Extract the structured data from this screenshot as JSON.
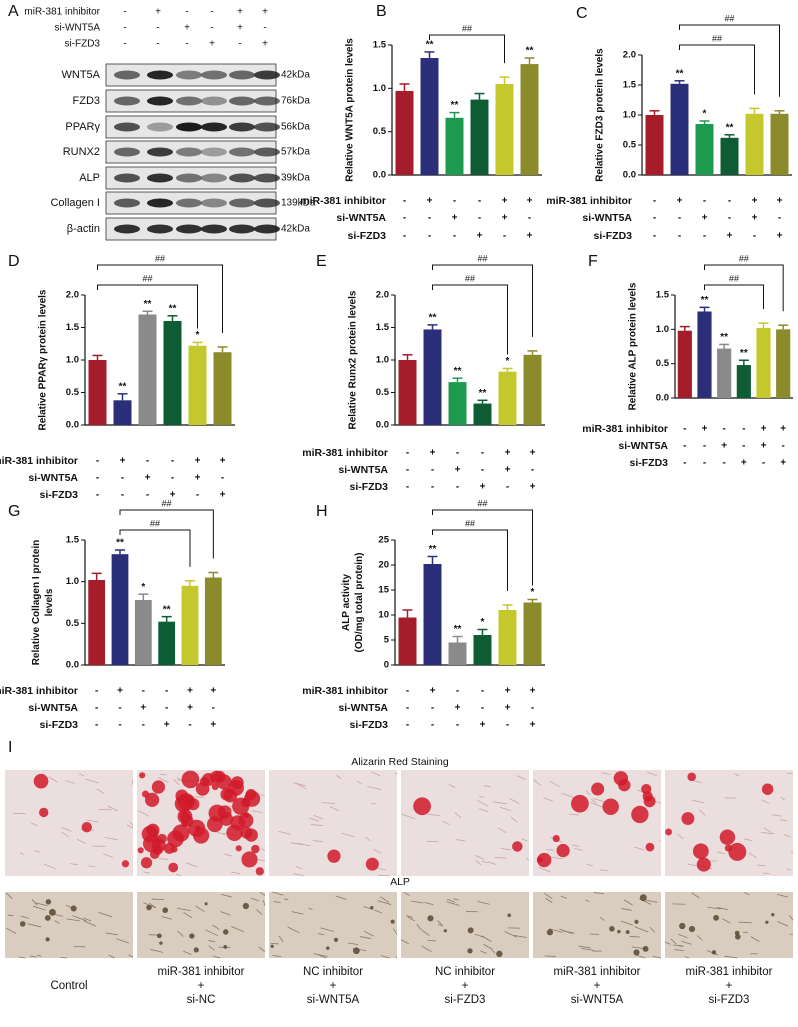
{
  "treatments": {
    "rows": [
      {
        "name": "miR-381 inhibitor",
        "signs": [
          "-",
          "+",
          "-",
          "-",
          "+",
          "+"
        ]
      },
      {
        "name": "si-WNT5A",
        "signs": [
          "-",
          "-",
          "+",
          "-",
          "+",
          "-"
        ]
      },
      {
        "name": "si-FZD3",
        "signs": [
          "-",
          "-",
          "-",
          "+",
          "-",
          "+"
        ]
      }
    ]
  },
  "blot": {
    "panel": "A",
    "proteins": [
      {
        "name": "WNT5A",
        "size": "42kDa"
      },
      {
        "name": "FZD3",
        "size": "76kDa"
      },
      {
        "name": "PPARγ",
        "size": "56kDa"
      },
      {
        "name": "RUNX2",
        "size": "57kDa"
      },
      {
        "name": "ALP",
        "size": "39kDa"
      },
      {
        "name": "Collagen I",
        "size": "139kDa"
      },
      {
        "name": "β-actin",
        "size": "42kDa"
      }
    ]
  },
  "chart_data": [
    {
      "type": "bar",
      "panel": "B",
      "ylabel": [
        "Relative WNT5A protein levels"
      ],
      "values": [
        0.97,
        1.35,
        0.66,
        0.87,
        1.05,
        1.28
      ],
      "errors": [
        0.08,
        0.07,
        0.06,
        0.07,
        0.08,
        0.07
      ],
      "colors": [
        "#a51c2a",
        "#2b2f7a",
        "#1e9a50",
        "#0d5c34",
        "#c5c82c",
        "#8c8b2c"
      ],
      "significance": [
        null,
        "**",
        "**",
        null,
        null,
        "**"
      ],
      "annotations": [
        {
          "text": "##",
          "from": 1,
          "to": 4
        }
      ],
      "ylim": [
        0,
        1.5
      ],
      "yticks": [
        {
          "value": 0,
          "label": "0.0"
        },
        0.5,
        {
          "value": 1,
          "label": "1.0"
        },
        1.5
      ]
    },
    {
      "type": "bar",
      "panel": "C",
      "ylabel": [
        "Relative FZD3 protein levels"
      ],
      "values": [
        1.0,
        1.52,
        0.85,
        0.62,
        1.02,
        1.02
      ],
      "errors": [
        0.07,
        0.05,
        0.05,
        0.05,
        0.09,
        0.05
      ],
      "colors": [
        "#a51c2a",
        "#2b2f7a",
        "#1e9a50",
        "#0d5c34",
        "#c5c82c",
        "#8c8b2c"
      ],
      "significance": [
        null,
        "**",
        "*",
        "**",
        null,
        null
      ],
      "annotations": [
        {
          "text": "##",
          "from": 1,
          "to": 5
        },
        {
          "text": "##",
          "from": 1,
          "to": 4
        }
      ],
      "ylim": [
        0,
        2
      ],
      "yticks": [
        {
          "value": 0,
          "label": "0.0"
        },
        0.5,
        {
          "value": 1,
          "label": "1.0"
        },
        1.5,
        {
          "value": 2,
          "label": "2.0"
        }
      ]
    },
    {
      "type": "bar",
      "panel": "D",
      "ylabel": [
        "Relative PPARγ protein levels"
      ],
      "values": [
        1.0,
        0.38,
        1.7,
        1.6,
        1.22,
        1.12
      ],
      "errors": [
        0.07,
        0.1,
        0.05,
        0.08,
        0.05,
        0.08
      ],
      "colors": [
        "#a51c2a",
        "#2b2f7a",
        "#8a8a8a",
        "#0d5c34",
        "#c5c82c",
        "#8c8b2c"
      ],
      "significance": [
        null,
        "**",
        "**",
        "**",
        "*",
        null
      ],
      "annotations": [
        {
          "text": "##",
          "from": 0,
          "to": 5
        },
        {
          "text": "##",
          "from": 0,
          "to": 4
        }
      ],
      "ylim": [
        0,
        2
      ],
      "yticks": [
        {
          "value": 0,
          "label": "0.0"
        },
        0.5,
        {
          "value": 1,
          "label": "1.0"
        },
        1.5,
        {
          "value": 2,
          "label": "2.0"
        }
      ]
    },
    {
      "type": "bar",
      "panel": "E",
      "ylabel": [
        "Relative Runx2 protein levels"
      ],
      "values": [
        1.0,
        1.47,
        0.66,
        0.33,
        0.82,
        1.08
      ],
      "errors": [
        0.08,
        0.07,
        0.06,
        0.05,
        0.05,
        0.06
      ],
      "colors": [
        "#a51c2a",
        "#2b2f7a",
        "#1e9a50",
        "#0d5c34",
        "#c5c82c",
        "#8c8b2c"
      ],
      "significance": [
        null,
        "**",
        "**",
        "**",
        "*",
        null
      ],
      "annotations": [
        {
          "text": "##",
          "from": 1,
          "to": 5
        },
        {
          "text": "##",
          "from": 1,
          "to": 4
        }
      ],
      "ylim": [
        0,
        2
      ],
      "yticks": [
        {
          "value": 0,
          "label": "0.0"
        },
        0.5,
        {
          "value": 1,
          "label": "1.0"
        },
        1.5,
        {
          "value": 2,
          "label": "2.0"
        }
      ]
    },
    {
      "type": "bar",
      "panel": "F",
      "ylabel": [
        "Relative ALP protein levels"
      ],
      "values": [
        0.98,
        1.26,
        0.72,
        0.48,
        1.02,
        1.0
      ],
      "errors": [
        0.06,
        0.06,
        0.06,
        0.07,
        0.07,
        0.06
      ],
      "colors": [
        "#a51c2a",
        "#2b2f7a",
        "#8a8a8a",
        "#0d5c34",
        "#c5c82c",
        "#8c8b2c"
      ],
      "significance": [
        null,
        "**",
        "**",
        "**",
        null,
        null
      ],
      "annotations": [
        {
          "text": "##",
          "from": 1,
          "to": 5
        },
        {
          "text": "##",
          "from": 1,
          "to": 4
        }
      ],
      "ylim": [
        0,
        1.5
      ],
      "yticks": [
        {
          "value": 0,
          "label": "0.0"
        },
        0.5,
        {
          "value": 1,
          "label": "1.0"
        },
        1.5
      ]
    },
    {
      "type": "bar",
      "panel": "G",
      "ylabel": [
        "Relative Collagen I protein",
        "levels"
      ],
      "values": [
        1.02,
        1.33,
        0.78,
        0.52,
        0.95,
        1.05
      ],
      "errors": [
        0.08,
        0.05,
        0.07,
        0.06,
        0.06,
        0.06
      ],
      "colors": [
        "#a51c2a",
        "#2b2f7a",
        "#8a8a8a",
        "#0d5c34",
        "#c5c82c",
        "#8c8b2c"
      ],
      "significance": [
        null,
        "**",
        "*",
        "**",
        null,
        null
      ],
      "annotations": [
        {
          "text": "##",
          "from": 1,
          "to": 5
        },
        {
          "text": "##",
          "from": 1,
          "to": 4
        }
      ],
      "ylim": [
        0,
        1.5
      ],
      "yticks": [
        {
          "value": 0,
          "label": "0.0"
        },
        0.5,
        {
          "value": 1,
          "label": "1.0"
        },
        1.5
      ]
    },
    {
      "type": "bar",
      "panel": "H",
      "ylabel": [
        "ALP activity",
        "(OD/mg total protein)"
      ],
      "values": [
        9.5,
        20.2,
        4.5,
        6.0,
        11.0,
        12.5
      ],
      "errors": [
        1.5,
        1.5,
        1.2,
        1.1,
        1.0,
        0.6
      ],
      "colors": [
        "#a51c2a",
        "#2b2f7a",
        "#8a8a8a",
        "#0d5c34",
        "#c5c82c",
        "#8c8b2c"
      ],
      "significance": [
        null,
        "**",
        "**",
        "*",
        null,
        "*"
      ],
      "annotations": [
        {
          "text": "##",
          "from": 1,
          "to": 5
        },
        {
          "text": "##",
          "from": 1,
          "to": 4
        }
      ],
      "ylim": [
        0,
        25
      ],
      "yticks": [
        0,
        5,
        10,
        15,
        20,
        25
      ]
    }
  ],
  "staining": {
    "panel": "I",
    "rows": [
      "Alizarin Red Staining",
      "ALP"
    ],
    "groups": [
      [
        "Control"
      ],
      [
        "miR-381 inhibitor",
        "+",
        "si-NC"
      ],
      [
        "NC inhibitor",
        "+",
        "si-WNT5A"
      ],
      [
        "NC inhibitor",
        "+",
        "si-FZD3"
      ],
      [
        "miR-381 inhibitor",
        "+",
        "si-WNT5A"
      ],
      [
        "miR-381 inhibitor",
        "+",
        "si-FZD3"
      ]
    ]
  }
}
